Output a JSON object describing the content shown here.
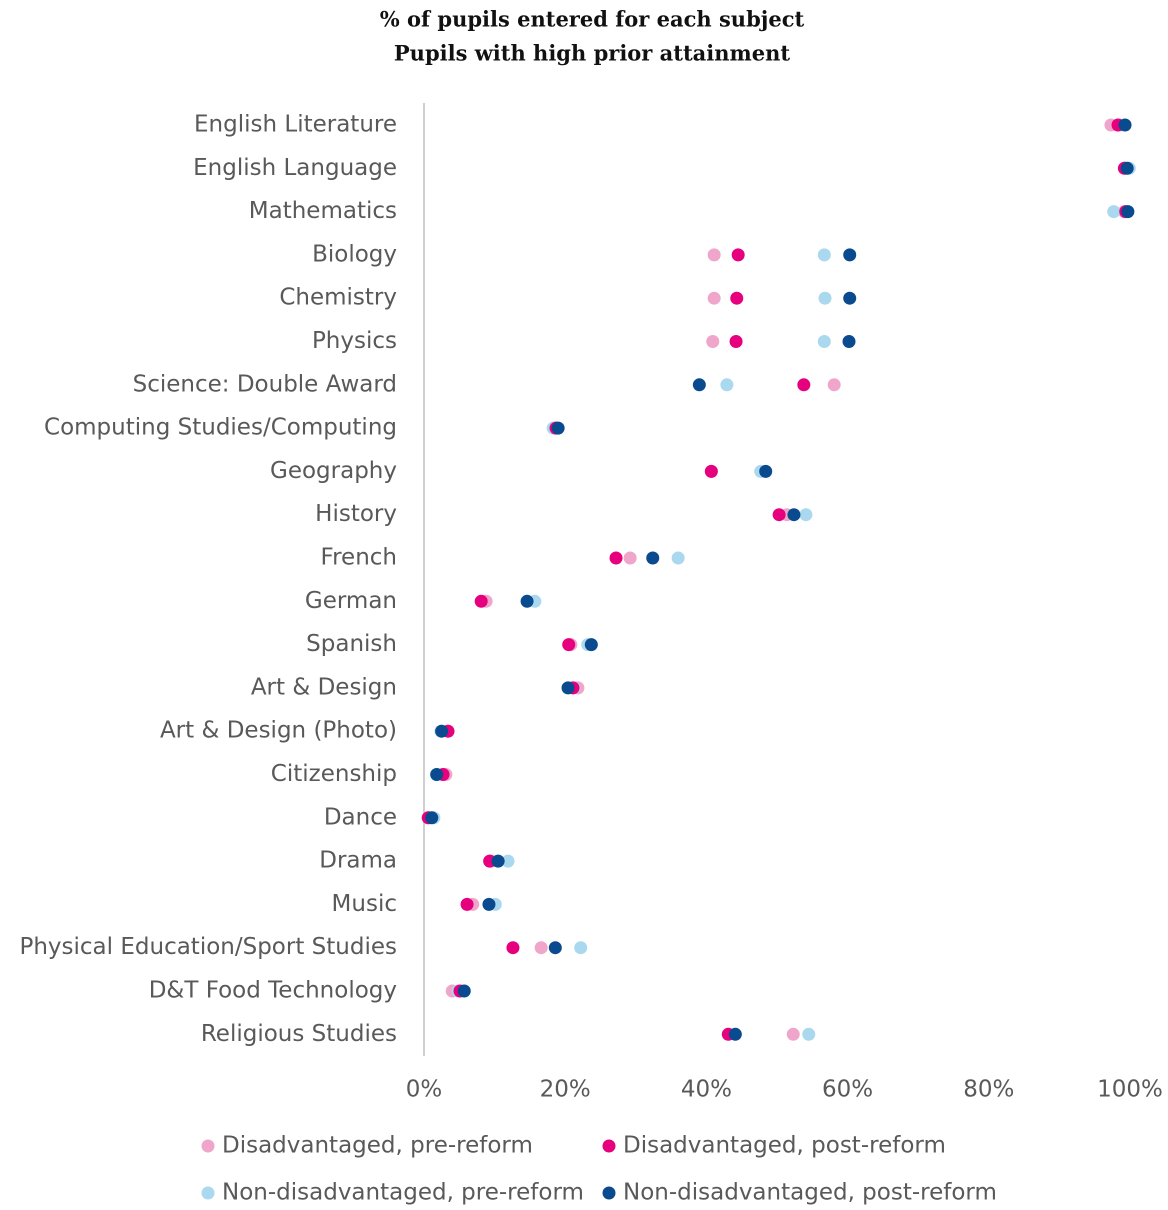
{
  "chart_data": {
    "type": "dot",
    "title": "% of pupils entered for each subject",
    "subtitle": "Pupils with high prior attainment",
    "categories": [
      "English Literature",
      "English Language",
      "Mathematics",
      "Biology",
      "Chemistry",
      "Physics",
      "Science: Double Award",
      "Computing Studies/Computing",
      "Geography",
      "History",
      "French",
      "German",
      "Spanish",
      "Art & Design",
      "Art & Design (Photo)",
      "Citizenship",
      "Dance",
      "Drama",
      "Music",
      "Physical Education/Sport Studies",
      "D&T Food Technology",
      "Religious Studies"
    ],
    "series": [
      {
        "name": "Disadvantaged, pre-reform",
        "color": "#f0a6cb",
        "values": [
          97.3,
          99.3,
          99.2,
          41.1,
          41.1,
          40.9,
          58.1,
          18.5,
          40.7,
          51.4,
          29.2,
          8.8,
          20.8,
          21.8,
          3.4,
          3.1,
          0.6,
          9.5,
          6.9,
          16.6,
          4.0,
          52.3
        ]
      },
      {
        "name": "Non-disadvantaged, pre-reform",
        "color": "#a9d8ef",
        "values": [
          98.6,
          99.9,
          97.7,
          56.7,
          56.8,
          56.7,
          42.9,
          18.3,
          47.7,
          54.1,
          36.0,
          15.7,
          23.2,
          21.2,
          2.4,
          1.8,
          1.4,
          11.9,
          10.1,
          22.2,
          4.8,
          54.5
        ]
      },
      {
        "name": "Disadvantaged, post-reform",
        "color": "#e6007e",
        "values": [
          98.3,
          99.2,
          99.4,
          44.5,
          44.3,
          44.2,
          53.8,
          18.7,
          40.7,
          50.3,
          27.2,
          8.1,
          20.5,
          21.1,
          3.4,
          2.7,
          0.6,
          9.3,
          6.1,
          12.6,
          5.1,
          43.1
        ]
      },
      {
        "name": "Non-disadvantaged, post-reform",
        "color": "#0a4a8f",
        "values": [
          99.3,
          99.6,
          99.7,
          60.3,
          60.3,
          60.2,
          39.0,
          19.0,
          48.4,
          52.4,
          32.4,
          14.6,
          23.7,
          20.4,
          2.5,
          1.8,
          1.1,
          10.5,
          9.2,
          18.6,
          5.7,
          44.1
        ]
      }
    ],
    "xlim": [
      0,
      100
    ],
    "xticks": [
      {
        "value": 0,
        "label": "0%"
      },
      {
        "value": 20,
        "label": "20%"
      },
      {
        "value": 40,
        "label": "40%"
      },
      {
        "value": 60,
        "label": "60%"
      },
      {
        "value": 80,
        "label": "80%"
      },
      {
        "value": 100,
        "label": "100%"
      }
    ]
  }
}
